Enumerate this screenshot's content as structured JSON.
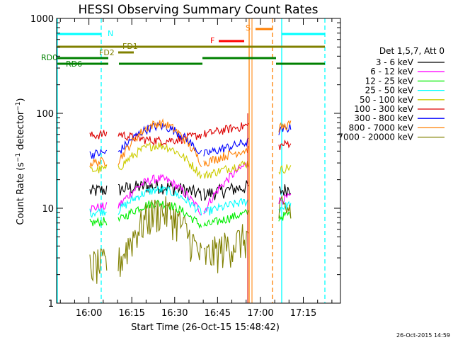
{
  "chart_data": {
    "type": "line",
    "title": "HESSI Observing Summary Count Rates",
    "ylabel_main": "Count Rate (s",
    "ylabel_exp1": "−1",
    "ylabel_mid": " detector",
    "ylabel_exp2": "−1",
    "ylabel_close": ")",
    "xlabel": "Start Time (26-Oct-15 15:48:42)",
    "yscale": "log",
    "ylim": [
      1,
      1000
    ],
    "xlim": [
      "15:48:42",
      "17:28:00"
    ],
    "x_ticks": [
      "16:00",
      "16:15",
      "16:30",
      "16:45",
      "17:00",
      "17:15"
    ],
    "y_ticks": [
      "1",
      "10",
      "100",
      "1000"
    ],
    "legend_header": "Det 1,5,7, Att 0",
    "series": [
      {
        "name": "3 - 6 keV",
        "color": "#000000",
        "values": {
          "a": 15,
          "b": 18,
          "c": 14,
          "d": 17,
          "e": 15
        }
      },
      {
        "name": "6 - 12 keV",
        "color": "#ff00ff",
        "values": {
          "a": 10,
          "b": 22,
          "c": 9,
          "d": 30,
          "e": 12
        }
      },
      {
        "name": "12 - 25 keV",
        "color": "#00ee00",
        "values": {
          "a": 7,
          "b": 12,
          "c": 6.5,
          "d": 9,
          "e": 8
        }
      },
      {
        "name": "25 - 50 keV",
        "color": "#00ffff",
        "values": {
          "a": 9,
          "b": 16,
          "c": 9,
          "d": 12,
          "e": 10
        }
      },
      {
        "name": "50 - 100 keV",
        "color": "#cccc00",
        "values": {
          "a": 25,
          "b": 50,
          "c": 22,
          "d": 30,
          "e": 25
        }
      },
      {
        "name": "100 - 300 keV",
        "color": "#dd0000",
        "values": {
          "a": 58,
          "b": 52,
          "c": 60,
          "d": 75,
          "e": 45
        }
      },
      {
        "name": "300 - 800 keV",
        "color": "#0000ff",
        "values": {
          "a": 37,
          "b": 75,
          "c": 37,
          "d": 50,
          "e": 65
        }
      },
      {
        "name": "800 - 7000 keV",
        "color": "#ff7f00",
        "values": {
          "a": 30,
          "b": 80,
          "c": 30,
          "d": 42,
          "e": 70
        }
      },
      {
        "name": "7000 - 20000 keV",
        "color": "#808000",
        "values": {
          "a": 2.5,
          "b": 10,
          "c": 3,
          "d": 5,
          "e": 9
        }
      }
    ],
    "flags": [
      {
        "label": "N",
        "color": "#00ffff"
      },
      {
        "label": "S",
        "color": "#ff7f00"
      },
      {
        "label": "F",
        "color": "#ff0000"
      },
      {
        "label": "FD1",
        "color": "#808000"
      },
      {
        "label": "FD2",
        "color": "#808000"
      },
      {
        "label": "RD0",
        "color": "#008000"
      },
      {
        "label": "RD6",
        "color": "#008000"
      }
    ],
    "timestamp": "26-Oct-2015 14:59"
  }
}
